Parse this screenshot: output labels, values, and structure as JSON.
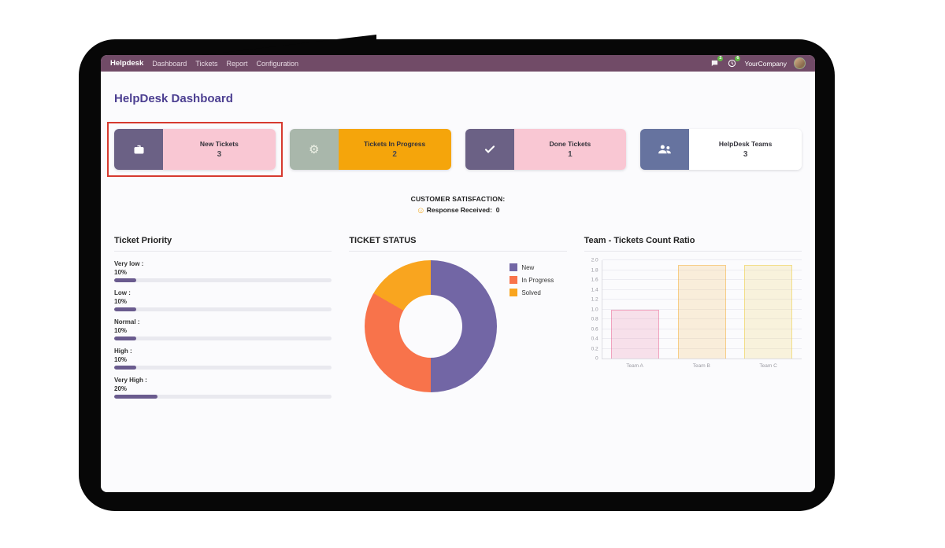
{
  "nav": {
    "brand": "Helpdesk",
    "items": [
      "Dashboard",
      "Tickets",
      "Report",
      "Configuration"
    ],
    "messages_badge": "2",
    "activity_badge": "6",
    "company": "YourCompany",
    "bar_color": "#714B67"
  },
  "page": {
    "title": "HelpDesk Dashboard",
    "title_color": "#4c3f91"
  },
  "kpi_cards": [
    {
      "title": "New Tickets",
      "count": "3",
      "icon": "briefcase-icon",
      "icon_bg": "#6b6185",
      "body_bg": "#f9c7d3",
      "highlighted": true
    },
    {
      "title": "Tickets In Progress",
      "count": "2",
      "icon": "gear-icon",
      "icon_bg": "#a9b7ab",
      "body_bg": "#f5a50b",
      "highlighted": false
    },
    {
      "title": "Done Tickets",
      "count": "1",
      "icon": "check-icon",
      "icon_bg": "#6b6185",
      "body_bg": "#f9c7d3",
      "highlighted": false
    },
    {
      "title": "HelpDesk Teams",
      "count": "3",
      "icon": "users-icon",
      "icon_bg": "#66739f",
      "body_bg": "#ffffff",
      "highlighted": false
    }
  ],
  "satisfaction": {
    "heading": "CUSTOMER SATISFACTION:",
    "smiley": "☺",
    "label": "Response Received:",
    "value": "0"
  },
  "chart_data": [
    {
      "type": "bar",
      "orientation": "horizontal",
      "title": "Ticket Priority",
      "categories": [
        "Very low :",
        "Low :",
        "Normal :",
        "High :",
        "Very High :"
      ],
      "values": [
        10,
        10,
        10,
        10,
        20
      ],
      "value_labels": [
        "10%",
        "10%",
        "10%",
        "10%",
        "20%"
      ],
      "xlim": [
        0,
        100
      ],
      "bar_color": "#6a5b8e",
      "track_color": "#e9e9ef"
    },
    {
      "type": "pie",
      "subtype": "donut",
      "title": "TICKET STATUS",
      "segments": [
        {
          "label": "New",
          "value": 3,
          "color": "#7266a5"
        },
        {
          "label": "In Progress",
          "value": 2,
          "color": "#f8734b"
        },
        {
          "label": "Solved",
          "value": 1,
          "color": "#f9a51f"
        }
      ],
      "legend_position": "right"
    },
    {
      "type": "bar",
      "title": "Team - Tickets Count Ratio",
      "categories": [
        "Team A",
        "Team B",
        "Team C"
      ],
      "values": [
        1.0,
        1.9,
        1.9
      ],
      "ylim": [
        0,
        2
      ],
      "yticks": [
        "2.0",
        "1.8",
        "1.6",
        "1.4",
        "1.2",
        "1.0",
        "0.8",
        "0.6",
        "0.4",
        "0.2",
        "0"
      ],
      "grid": true,
      "bar_colors": [
        {
          "fill": "rgba(233,86,138,0.16)",
          "border": "rgba(233,86,138,0.45)"
        },
        {
          "fill": "rgba(245,166,35,0.16)",
          "border": "rgba(245,166,35,0.45)"
        },
        {
          "fill": "rgba(238,205,70,0.18)",
          "border": "rgba(238,205,70,0.55)"
        }
      ]
    }
  ]
}
